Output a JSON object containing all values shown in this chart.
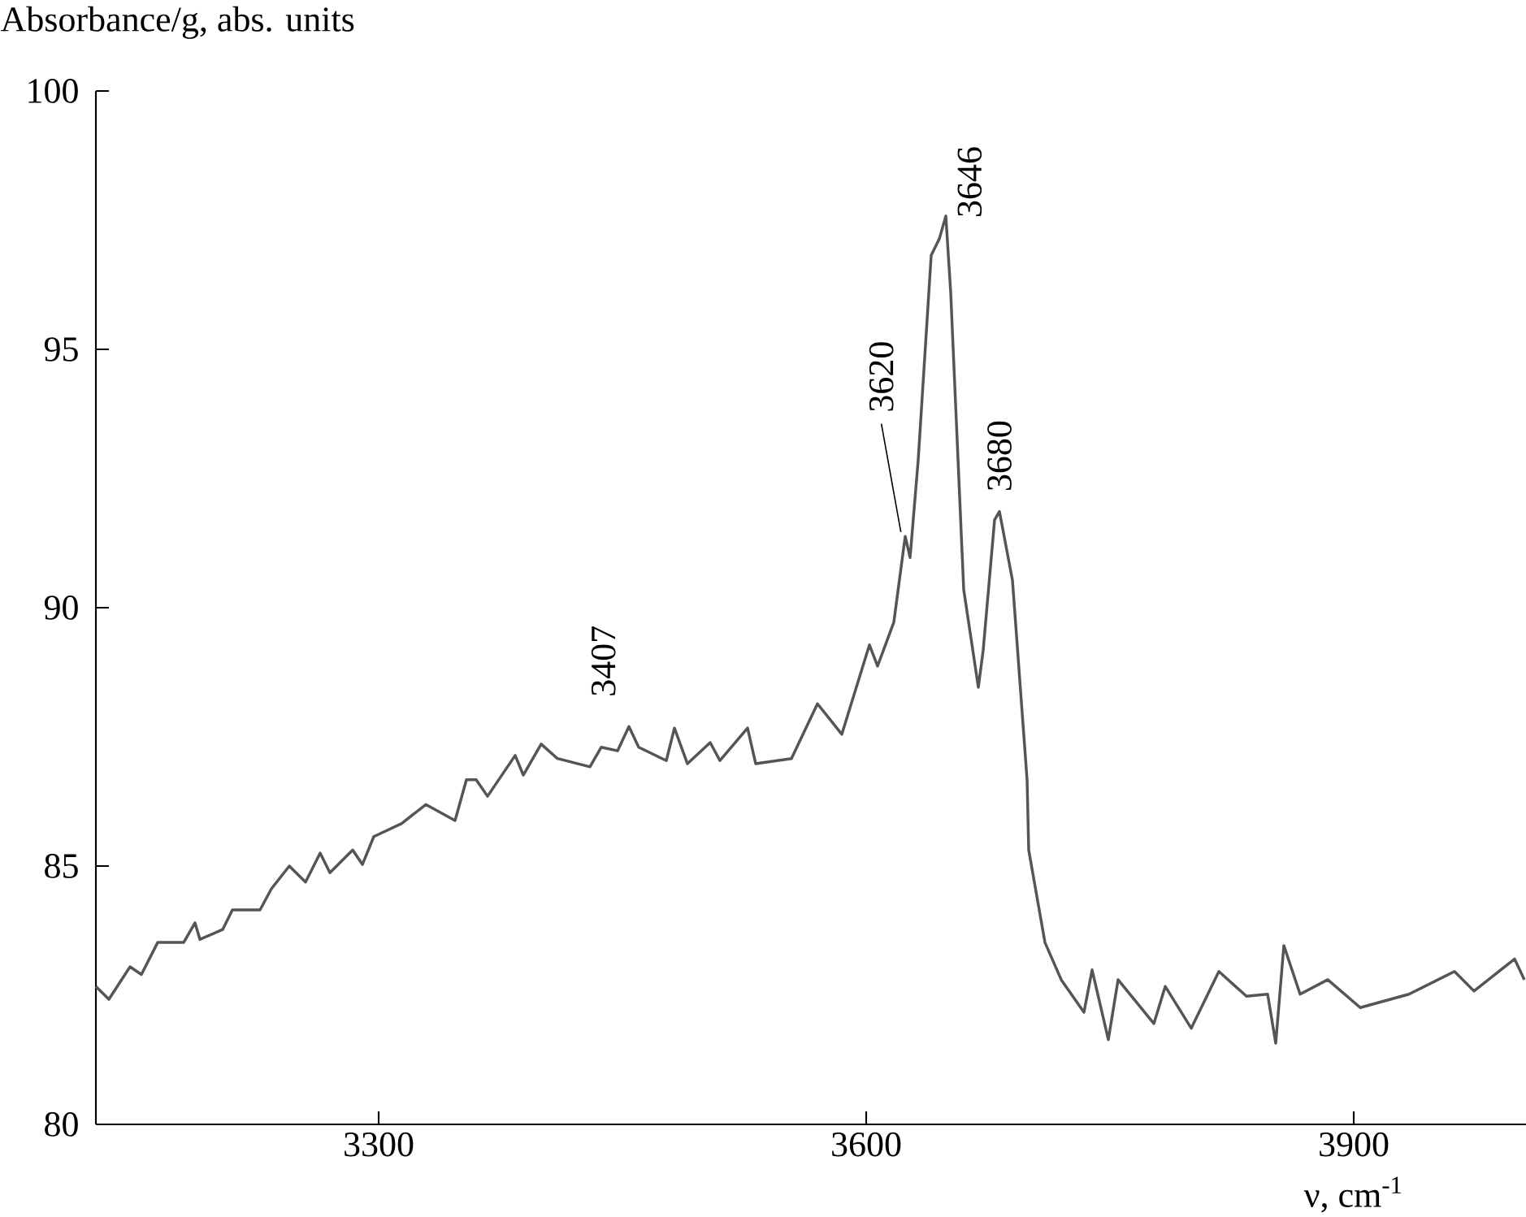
{
  "chart_data": {
    "type": "line",
    "xlabel": "ν, cm$^{-1}$",
    "ylabel": "Absorbance/g, abs. units",
    "xlim": [
      3126,
      4006
    ],
    "ylim": [
      80,
      100
    ],
    "xticks": [
      3300,
      3600,
      3900
    ],
    "yticks": [
      80,
      85,
      90,
      95,
      100
    ],
    "annotations": [
      {
        "text": "3407",
        "x": 3437,
        "y": 87.3
      },
      {
        "text": "3620",
        "x": 3624,
        "y": 91.38
      },
      {
        "text": "3646",
        "x": 3649,
        "y": 97.58
      },
      {
        "text": "3680",
        "x": 3682,
        "y": 91.86
      }
    ],
    "series": [
      {
        "color": "#555555",
        "x": [
          3126,
          3134,
          3147,
          3154,
          3164,
          3180,
          3187,
          3190,
          3204,
          3210,
          3227,
          3234,
          3245,
          3255,
          3264,
          3270,
          3284,
          3290,
          3297,
          3314,
          3329,
          3347,
          3354,
          3360,
          3367,
          3384,
          3389,
          3400,
          3410,
          3430,
          3437,
          3447,
          3454,
          3460,
          3477,
          3482,
          3490,
          3504,
          3510,
          3527,
          3532,
          3554,
          3570,
          3585,
          3602,
          3607,
          3617,
          3624,
          3627,
          3632,
          3640,
          3645,
          3649,
          3652,
          3660,
          3669,
          3672,
          3679,
          3682,
          3690,
          3699,
          3700,
          3710,
          3720,
          3734,
          3739,
          3749,
          3755,
          3777,
          3784,
          3800,
          3817,
          3834,
          3847,
          3852,
          3857,
          3867,
          3884,
          3904,
          3934,
          3962,
          3974,
          3999,
          4005
        ],
        "values": [
          82.67,
          82.42,
          83.05,
          82.9,
          83.52,
          83.52,
          83.9,
          83.58,
          83.77,
          84.15,
          84.15,
          84.56,
          85.0,
          84.69,
          85.25,
          84.87,
          85.31,
          85.03,
          85.57,
          85.82,
          86.19,
          85.88,
          86.67,
          86.67,
          86.35,
          87.14,
          86.76,
          87.36,
          87.08,
          86.92,
          87.3,
          87.23,
          87.7,
          87.3,
          87.04,
          87.67,
          86.98,
          87.39,
          87.04,
          87.67,
          86.98,
          87.08,
          88.14,
          87.55,
          89.28,
          88.87,
          89.72,
          91.38,
          90.97,
          92.86,
          96.82,
          97.14,
          97.58,
          96.1,
          90.35,
          88.46,
          89.18,
          91.7,
          91.86,
          90.53,
          86.67,
          85.31,
          83.52,
          82.8,
          82.17,
          82.99,
          81.64,
          82.8,
          81.95,
          82.67,
          81.86,
          82.96,
          82.48,
          82.52,
          81.57,
          83.46,
          82.52,
          82.8,
          82.26,
          82.52,
          82.96,
          82.58,
          83.2,
          82.8
        ]
      }
    ]
  }
}
